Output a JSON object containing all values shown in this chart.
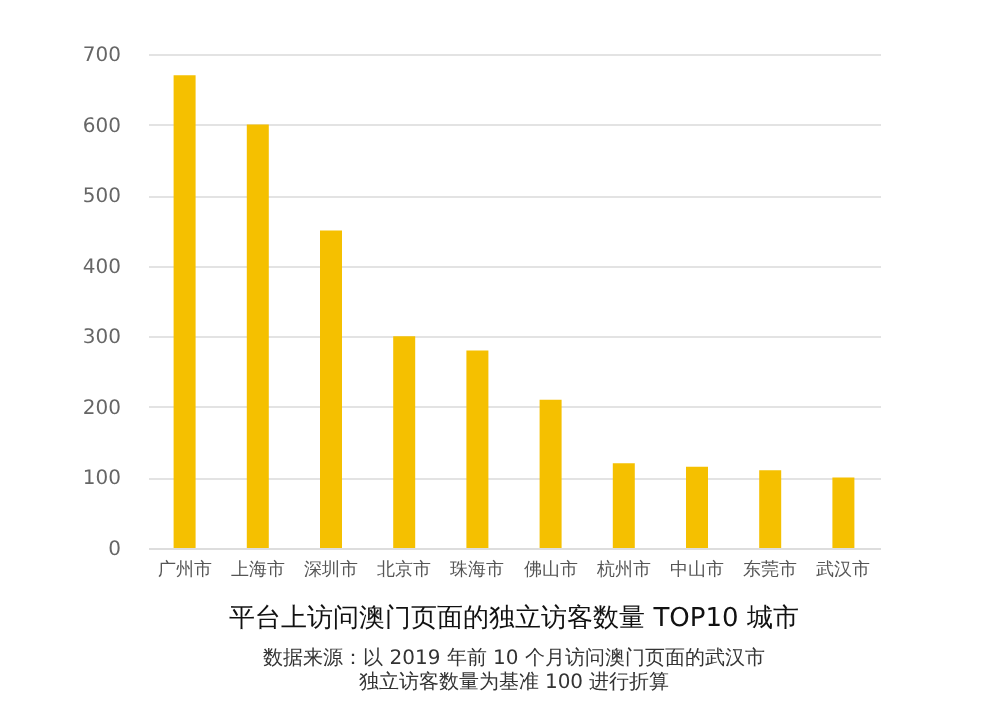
{
  "chart_data": {
    "type": "bar",
    "title": "平台上访问澳门页面的独立访客数量 TOP10 城市",
    "annotations": [
      "数据来源：以 2019 年前 10 个月访问澳门页面的武汉市独立访客数量为基准 100 进行折算"
    ],
    "categories": [
      "广州市",
      "上海市",
      "深圳市",
      "北京市",
      "珠海市",
      "佛山市",
      "杭州市",
      "中山市",
      "东莞市",
      "武汉市"
    ],
    "values": [
      670,
      600,
      450,
      300,
      280,
      210,
      120,
      115,
      110,
      100
    ],
    "color": "#f5c000",
    "ylim": [
      0,
      700
    ],
    "yticks": [
      0,
      100,
      200,
      300,
      400,
      500,
      600,
      700
    ],
    "grid": "y"
  }
}
